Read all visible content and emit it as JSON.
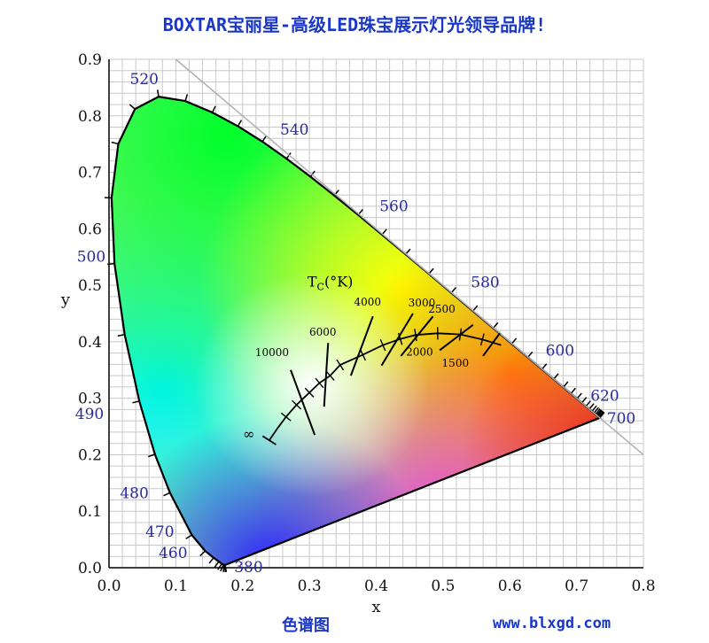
{
  "header": {
    "title": "BOXTAR宝丽星-高级LED珠宝展示灯光领导品牌!"
  },
  "footer": {
    "caption": "色谱图",
    "url": "www.blxgd.com"
  },
  "chart_data": {
    "type": "diagram",
    "xlabel": "x",
    "ylabel": "y",
    "xlim": [
      0.0,
      0.8
    ],
    "ylim": [
      0.0,
      0.9
    ],
    "x_ticks": [
      "0.0",
      "0.1",
      "0.2",
      "0.3",
      "0.4",
      "0.5",
      "0.6",
      "0.7",
      "0.8"
    ],
    "y_ticks": [
      "0.0",
      "0.1",
      "0.2",
      "0.3",
      "0.4",
      "0.5",
      "0.6",
      "0.7",
      "0.8",
      "0.9"
    ],
    "grid": true,
    "spectral_locus": [
      [
        0.1741,
        0.005
      ],
      [
        0.1738,
        0.0049
      ],
      [
        0.1736,
        0.0049
      ],
      [
        0.1733,
        0.0048
      ],
      [
        0.1726,
        0.0048
      ],
      [
        0.1714,
        0.0051
      ],
      [
        0.1689,
        0.0069
      ],
      [
        0.1644,
        0.0109
      ],
      [
        0.1566,
        0.0177
      ],
      [
        0.144,
        0.0297
      ],
      [
        0.1241,
        0.0578
      ],
      [
        0.0913,
        0.1327
      ],
      [
        0.0687,
        0.2007
      ],
      [
        0.0454,
        0.295
      ],
      [
        0.0235,
        0.4127
      ],
      [
        0.0082,
        0.5384
      ],
      [
        0.0039,
        0.6548
      ],
      [
        0.0139,
        0.7502
      ],
      [
        0.0389,
        0.812
      ],
      [
        0.0743,
        0.8338
      ],
      [
        0.1142,
        0.8262
      ],
      [
        0.1547,
        0.8059
      ],
      [
        0.1929,
        0.7816
      ],
      [
        0.2296,
        0.7543
      ],
      [
        0.2658,
        0.7243
      ],
      [
        0.3016,
        0.6923
      ],
      [
        0.3373,
        0.6589
      ],
      [
        0.3731,
        0.6245
      ],
      [
        0.4087,
        0.5896
      ],
      [
        0.4441,
        0.5547
      ],
      [
        0.4788,
        0.5202
      ],
      [
        0.5125,
        0.4866
      ],
      [
        0.5448,
        0.4544
      ],
      [
        0.5752,
        0.4242
      ],
      [
        0.6029,
        0.3965
      ],
      [
        0.627,
        0.3725
      ],
      [
        0.6482,
        0.3514
      ],
      [
        0.6658,
        0.334
      ],
      [
        0.6801,
        0.3197
      ],
      [
        0.6915,
        0.3083
      ],
      [
        0.7006,
        0.2993
      ],
      [
        0.7079,
        0.292
      ],
      [
        0.714,
        0.2859
      ],
      [
        0.719,
        0.2809
      ],
      [
        0.723,
        0.277
      ],
      [
        0.726,
        0.274
      ],
      [
        0.7283,
        0.2717
      ],
      [
        0.73,
        0.27
      ],
      [
        0.7311,
        0.2689
      ],
      [
        0.732,
        0.268
      ],
      [
        0.7327,
        0.2673
      ],
      [
        0.7334,
        0.2666
      ],
      [
        0.734,
        0.266
      ],
      [
        0.7344,
        0.2656
      ],
      [
        0.7346,
        0.2654
      ],
      [
        0.7347,
        0.2653
      ]
    ],
    "wavelength_labels": [
      {
        "text": "380",
        "x": 0.1741,
        "y": 0.005
      },
      {
        "text": "460",
        "x": 0.144,
        "y": 0.0297
      },
      {
        "text": "470",
        "x": 0.1241,
        "y": 0.0578
      },
      {
        "text": "480",
        "x": 0.0913,
        "y": 0.1327
      },
      {
        "text": "490",
        "x": 0.0454,
        "y": 0.295
      },
      {
        "text": "500",
        "x": 0.0082,
        "y": 0.5384
      },
      {
        "text": "520",
        "x": 0.0743,
        "y": 0.8338
      },
      {
        "text": "540",
        "x": 0.2296,
        "y": 0.7543
      },
      {
        "text": "560",
        "x": 0.3731,
        "y": 0.6245
      },
      {
        "text": "580",
        "x": 0.5125,
        "y": 0.4866
      },
      {
        "text": "600",
        "x": 0.627,
        "y": 0.3725
      },
      {
        "text": "620",
        "x": 0.6915,
        "y": 0.3083
      },
      {
        "text": "700",
        "x": 0.7347,
        "y": 0.2653
      }
    ],
    "planckian_locus": [
      [
        0.2399,
        0.2256
      ],
      [
        0.253,
        0.248
      ],
      [
        0.265,
        0.267
      ],
      [
        0.2807,
        0.2883
      ],
      [
        0.3,
        0.31
      ],
      [
        0.315,
        0.327
      ],
      [
        0.331,
        0.34
      ],
      [
        0.346,
        0.359
      ],
      [
        0.38,
        0.377
      ],
      [
        0.41,
        0.394
      ],
      [
        0.436,
        0.405
      ],
      [
        0.459,
        0.412
      ],
      [
        0.492,
        0.415
      ],
      [
        0.526,
        0.413
      ],
      [
        0.559,
        0.404
      ],
      [
        0.587,
        0.394
      ]
    ],
    "isotherms": [
      {
        "text": "10000",
        "x1": 0.272,
        "y1": 0.35,
        "x2": 0.308,
        "y2": 0.235
      },
      {
        "text": "6000",
        "x1": 0.328,
        "y1": 0.398,
        "x2": 0.322,
        "y2": 0.285
      },
      {
        "text": "4000",
        "x1": 0.395,
        "y1": 0.445,
        "x2": 0.362,
        "y2": 0.34
      },
      {
        "text": "3000",
        "x1": 0.455,
        "y1": 0.45,
        "x2": 0.408,
        "y2": 0.358
      },
      {
        "text": "2500",
        "x1": 0.485,
        "y1": 0.445,
        "x2": 0.437,
        "y2": 0.375
      },
      {
        "text": "2000",
        "x1": 0.545,
        "y1": 0.43,
        "x2": 0.495,
        "y2": 0.385
      },
      {
        "text": "1500",
        "x1": 0.585,
        "y1": 0.415,
        "x2": 0.56,
        "y2": 0.375
      }
    ],
    "infinity_label": "∞",
    "tc_label": "T",
    "tc_sub": "C",
    "tc_unit": "(°K)",
    "whitepoint_color": "#ffffff"
  }
}
